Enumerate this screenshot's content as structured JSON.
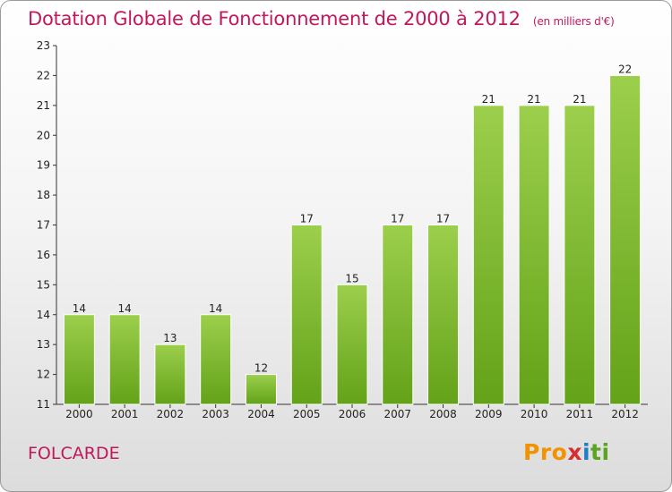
{
  "header": {
    "title": "Dotation Globale de Fonctionnement de 2000 à 2012",
    "unit": "(en milliers d'€)"
  },
  "footer": {
    "commune": "FOLCARDE",
    "logo_parts": [
      "Pro",
      "x",
      "i",
      "ti"
    ]
  },
  "colors": {
    "title": "#c2185b",
    "bar_top": "#9ccf4c",
    "bar_bottom": "#63a219"
  },
  "chart_data": {
    "type": "bar",
    "title": "Dotation Globale de Fonctionnement de 2000 à 2012",
    "subtitle": "(en milliers d'€)",
    "xlabel": "",
    "ylabel": "",
    "categories": [
      "2000",
      "2001",
      "2002",
      "2003",
      "2004",
      "2005",
      "2006",
      "2007",
      "2008",
      "2009",
      "2010",
      "2011",
      "2012"
    ],
    "values": [
      14,
      14,
      13,
      14,
      12,
      17,
      15,
      17,
      17,
      21,
      21,
      21,
      22
    ],
    "ylim": [
      11,
      23
    ],
    "yticks": [
      11,
      12,
      13,
      14,
      15,
      16,
      17,
      18,
      19,
      20,
      21,
      22,
      23
    ],
    "grid": false,
    "legend": "none"
  }
}
